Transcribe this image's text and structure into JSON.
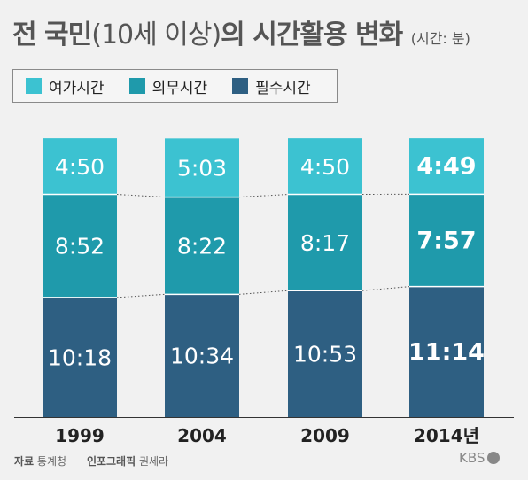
{
  "title": {
    "main_bold": "전 국민",
    "main_light": "(10세 이상)",
    "main_rest": "의 시간활용 변화",
    "unit": "(시간: 분)"
  },
  "colors": {
    "leisure": "#3cc2d1",
    "obligatory": "#1f9aab",
    "necessary": "#2e5f82",
    "background": "#f1f1f1"
  },
  "legend": [
    {
      "name": "여가시간",
      "color": "#3cc2d1"
    },
    {
      "name": "의무시간",
      "color": "#1f9aab"
    },
    {
      "name": "필수시간",
      "color": "#2e5f82"
    }
  ],
  "chart_data": {
    "type": "bar",
    "stacked": true,
    "categories": [
      "1999",
      "2004",
      "2009",
      "2014년"
    ],
    "series": [
      {
        "name": "필수시간",
        "color": "#2e5f82",
        "values": [
          10.3,
          10.567,
          10.883,
          11.233
        ],
        "labels": [
          "10:18",
          "10:34",
          "10:53",
          "11:14"
        ]
      },
      {
        "name": "의무시간",
        "color": "#1f9aab",
        "values": [
          8.867,
          8.367,
          8.283,
          7.95
        ],
        "labels": [
          "8:52",
          "8:22",
          "8:17",
          "7:57"
        ]
      },
      {
        "name": "여가시간",
        "color": "#3cc2d1",
        "values": [
          4.833,
          5.05,
          4.833,
          4.817
        ],
        "labels": [
          "4:50",
          "5:03",
          "4:50",
          "4:49"
        ]
      }
    ],
    "highlight_category": "2014년",
    "unit": "시간:분",
    "connector_lines": "dotted",
    "xlabel": "",
    "ylabel": ""
  },
  "footer": {
    "source_label": "자료",
    "source_value": "통계청",
    "graphic_label": "인포그래픽",
    "graphic_value": "권세라",
    "logo_text": "KBS"
  }
}
